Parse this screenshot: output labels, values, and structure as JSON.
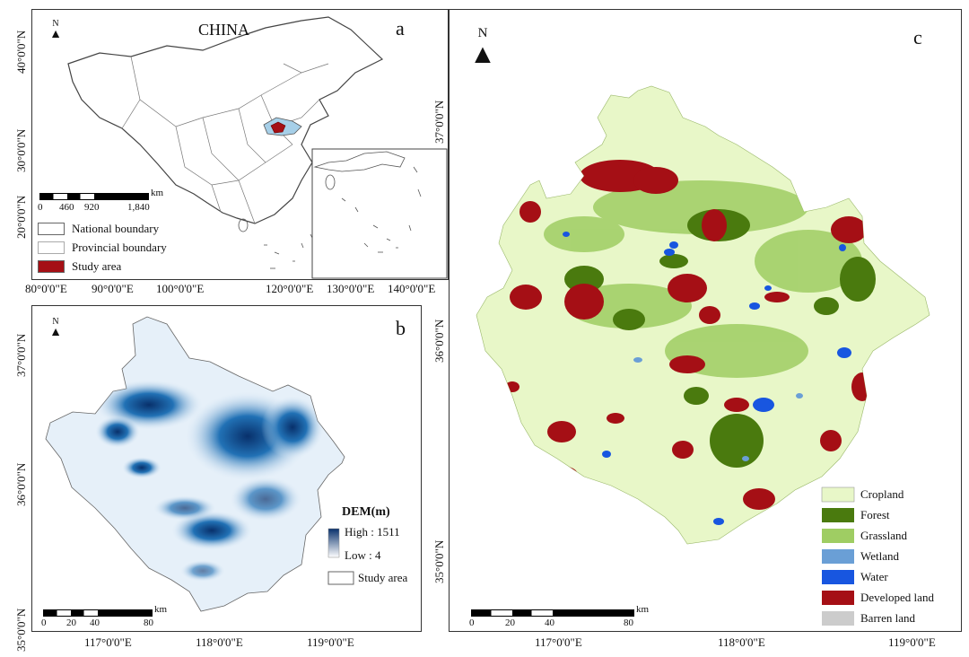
{
  "panel_a": {
    "letter": "a",
    "country_label": "CHINA",
    "north_letter": "N",
    "scale": {
      "unit": "km",
      "ticks": [
        "0",
        "460",
        "920",
        "1,840"
      ]
    },
    "legend": [
      {
        "label": "National boundary",
        "color": "#ffffff"
      },
      {
        "label": "Provincial boundary",
        "color": "#ffffff"
      },
      {
        "label": "Study area",
        "color": "#a50f15"
      }
    ],
    "lon_labels": [
      "80°0'0\"E",
      "90°0'0\"E",
      "100°0'0\"E",
      "120°0'0\"E",
      "130°0'0\"E",
      "140°0'0\"E"
    ],
    "lat_labels": [
      "40°0'0\"N",
      "30°0'0\"N",
      "20°0'0\"N"
    ]
  },
  "panel_b": {
    "letter": "b",
    "north_letter": "N",
    "legend_title": "DEM(m)",
    "high_label": "High : 1511",
    "low_label": "Low :  4",
    "study_area_label": "Study area",
    "scale": {
      "unit": "km",
      "ticks": [
        "0",
        "20",
        "40",
        "80"
      ]
    },
    "lon_labels": [
      "117°0'0\"E",
      "118°0'0\"E",
      "119°0'0\"E"
    ],
    "lat_labels": [
      "37°0'0\"N",
      "36°0'0\"N",
      "35°0'0\"N"
    ],
    "colors": {
      "high": "#08306b",
      "low": "#ffffff"
    }
  },
  "panel_c": {
    "letter": "c",
    "north_letter": "N",
    "legend": [
      {
        "label": "Cropland",
        "color": "#e8f7c8"
      },
      {
        "label": "Forest",
        "color": "#4a7a0e"
      },
      {
        "label": "Grassland",
        "color": "#9fcd63"
      },
      {
        "label": "Wetland",
        "color": "#6a9fd6"
      },
      {
        "label": "Water",
        "color": "#1856e0"
      },
      {
        "label": "Developed land",
        "color": "#a50f15"
      },
      {
        "label": "Barren land",
        "color": "#cccccc"
      }
    ],
    "scale": {
      "unit": "km",
      "ticks": [
        "0",
        "20",
        "40",
        "80"
      ]
    },
    "lon_labels": [
      "117°0'0\"E",
      "118°0'0\"E",
      "119°0'0\"E"
    ],
    "lat_labels": [
      "37°0'0\"N",
      "36°0'0\"N",
      "35°0'0\"N"
    ]
  }
}
